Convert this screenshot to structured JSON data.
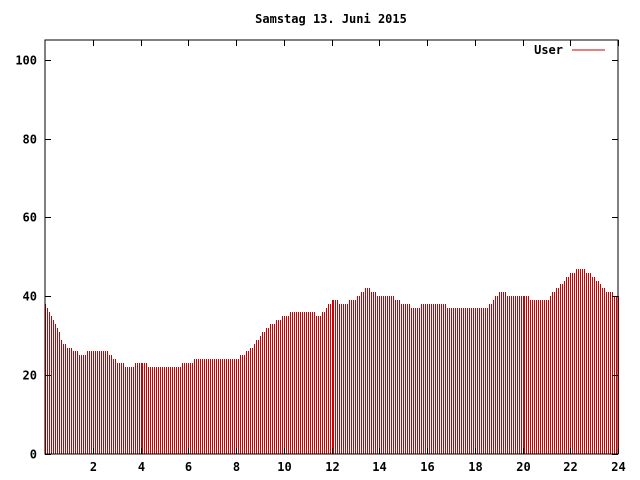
{
  "chart_data": {
    "type": "bar",
    "title": "Samstag 13. Juni 2015",
    "xlabel": "",
    "ylabel": "",
    "xlim": [
      0,
      24
    ],
    "ylim": [
      0,
      105
    ],
    "x_ticks": [
      "2",
      "4",
      "6",
      "8",
      "10",
      "12",
      "14",
      "16",
      "18",
      "20",
      "22",
      "24"
    ],
    "y_ticks": [
      "0",
      "20",
      "40",
      "60",
      "80",
      "100"
    ],
    "legend_position": "top-right",
    "grid": false,
    "series_color": "#cc0000",
    "series": [
      {
        "name": "User",
        "points": [
          {
            "x": 0.0,
            "y": 38
          },
          {
            "x": 0.5,
            "y": 32
          },
          {
            "x": 0.75,
            "y": 28
          },
          {
            "x": 1.0,
            "y": 27
          },
          {
            "x": 1.5,
            "y": 25
          },
          {
            "x": 2.0,
            "y": 26
          },
          {
            "x": 2.5,
            "y": 26
          },
          {
            "x": 2.9,
            "y": 24
          },
          {
            "x": 3.0,
            "y": 23
          },
          {
            "x": 3.5,
            "y": 22
          },
          {
            "x": 4.0,
            "y": 23
          },
          {
            "x": 4.5,
            "y": 22
          },
          {
            "x": 5.0,
            "y": 22
          },
          {
            "x": 5.5,
            "y": 22
          },
          {
            "x": 6.0,
            "y": 23
          },
          {
            "x": 6.5,
            "y": 24
          },
          {
            "x": 7.0,
            "y": 24
          },
          {
            "x": 7.5,
            "y": 24
          },
          {
            "x": 8.0,
            "y": 24
          },
          {
            "x": 8.5,
            "y": 26
          },
          {
            "x": 9.0,
            "y": 30
          },
          {
            "x": 9.5,
            "y": 33
          },
          {
            "x": 10.0,
            "y": 35
          },
          {
            "x": 10.5,
            "y": 36
          },
          {
            "x": 11.0,
            "y": 36
          },
          {
            "x": 11.5,
            "y": 35
          },
          {
            "x": 12.0,
            "y": 39
          },
          {
            "x": 12.5,
            "y": 38
          },
          {
            "x": 13.0,
            "y": 39
          },
          {
            "x": 13.5,
            "y": 42
          },
          {
            "x": 14.0,
            "y": 40
          },
          {
            "x": 14.5,
            "y": 40
          },
          {
            "x": 15.0,
            "y": 38
          },
          {
            "x": 15.5,
            "y": 37
          },
          {
            "x": 16.0,
            "y": 38
          },
          {
            "x": 16.5,
            "y": 38
          },
          {
            "x": 17.0,
            "y": 37
          },
          {
            "x": 17.5,
            "y": 37
          },
          {
            "x": 18.0,
            "y": 37
          },
          {
            "x": 18.5,
            "y": 37
          },
          {
            "x": 19.0,
            "y": 41
          },
          {
            "x": 19.5,
            "y": 40
          },
          {
            "x": 20.0,
            "y": 40
          },
          {
            "x": 20.5,
            "y": 39
          },
          {
            "x": 21.0,
            "y": 39
          },
          {
            "x": 21.5,
            "y": 42
          },
          {
            "x": 22.0,
            "y": 46
          },
          {
            "x": 22.5,
            "y": 47
          },
          {
            "x": 23.0,
            "y": 45
          },
          {
            "x": 23.5,
            "y": 41
          },
          {
            "x": 24.0,
            "y": 40
          }
        ]
      }
    ]
  }
}
